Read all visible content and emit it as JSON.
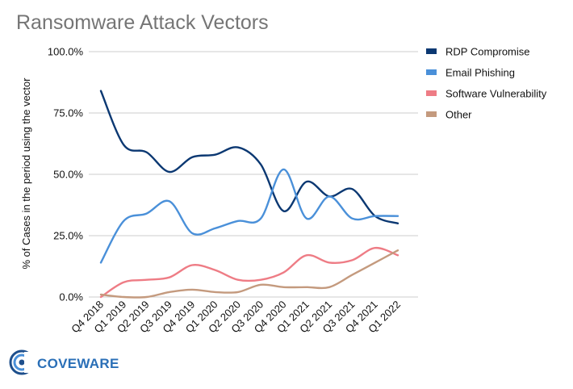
{
  "chart_data": {
    "type": "line",
    "title": "Ransomware Attack Vectors",
    "ylabel": "% of Cases in the period using the vector",
    "xlabel": "",
    "ylim": [
      0,
      100
    ],
    "yticks": [
      "0.0%",
      "25.0%",
      "50.0%",
      "75.0%",
      "100.0%"
    ],
    "ytick_values": [
      0,
      25,
      50,
      75,
      100
    ],
    "grid": true,
    "legend_position": "right",
    "categories": [
      "Q4 2018",
      "Q1 2019",
      "Q2 2019",
      "Q3 2019",
      "Q4 2019",
      "Q1 2020",
      "Q2 2020",
      "Q3 2020",
      "Q4 2020",
      "Q1 2021",
      "Q2 2021",
      "Q3 2021",
      "Q4 2021",
      "Q1 2022"
    ],
    "series": [
      {
        "name": "RDP Compromise",
        "color": "#0b3872",
        "values": [
          84,
          62,
          59,
          51,
          57,
          58,
          61,
          54,
          35,
          47,
          41,
          44,
          33,
          30
        ]
      },
      {
        "name": "Email Phishing",
        "color": "#4a90d9",
        "values": [
          14,
          31,
          34,
          39,
          26,
          28,
          31,
          32,
          52,
          32,
          41,
          32,
          33,
          33
        ]
      },
      {
        "name": "Software Vulnerability",
        "color": "#ee7c85",
        "values": [
          0,
          6,
          7,
          8,
          13,
          11,
          7,
          7,
          10,
          17,
          14,
          15,
          20,
          17
        ]
      },
      {
        "name": "Other",
        "color": "#c49a7e",
        "values": [
          1,
          0,
          0,
          2,
          3,
          2,
          2,
          5,
          4,
          4,
          4,
          9,
          14,
          19
        ]
      }
    ]
  },
  "logo": {
    "text": "COVEWARE",
    "icon": "coveware-logo-icon"
  }
}
